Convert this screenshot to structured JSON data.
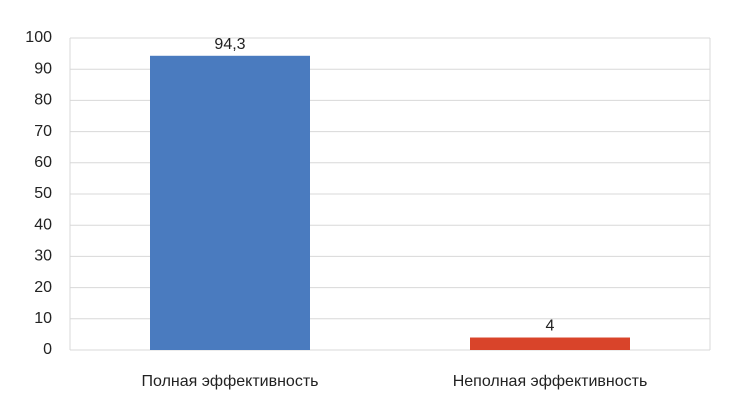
{
  "chart_data": {
    "type": "bar",
    "categories": [
      "Полная эффективность",
      "Неполная эффективность"
    ],
    "values": [
      94.3,
      4
    ],
    "value_labels": [
      "94,3",
      "4"
    ],
    "colors": [
      "#4a7bbf",
      "#d9442a"
    ],
    "ylim": [
      0,
      100
    ],
    "yticks": [
      0,
      10,
      20,
      30,
      40,
      50,
      60,
      70,
      80,
      90,
      100
    ],
    "grid": true
  }
}
